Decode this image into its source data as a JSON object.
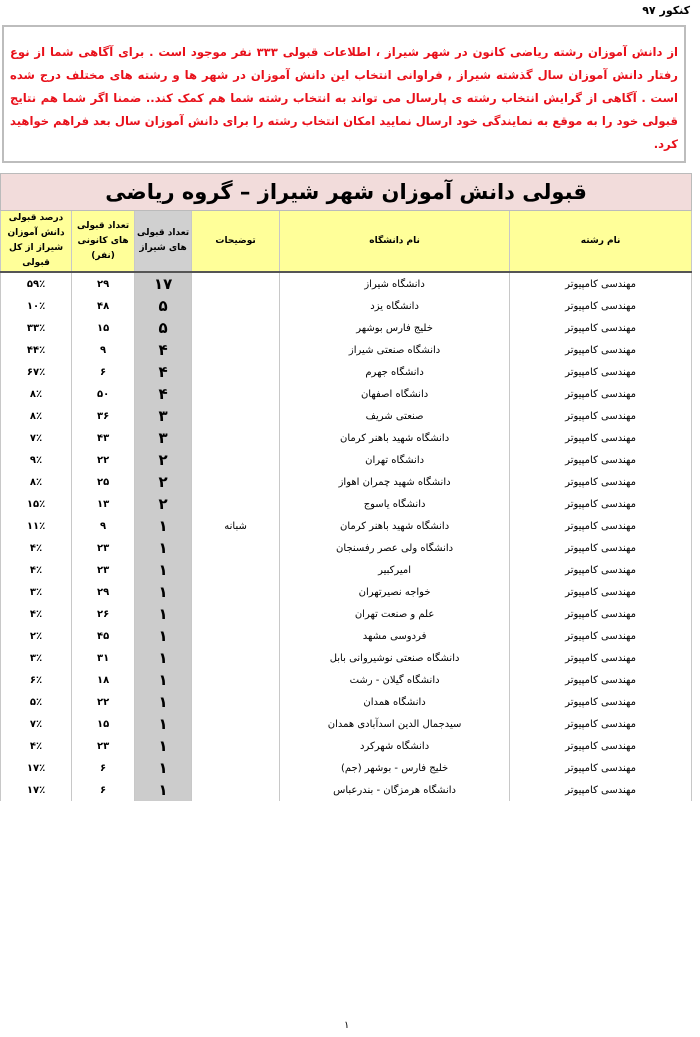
{
  "header": {
    "exam": "کنکور ۹۷"
  },
  "intro": {
    "text": "از دانش آموزان رشته ریاضی کانون در شهر شیراز ، اطلاعات قبولی ۳۳۳ نفر موجود است . برای آگاهی شما از نوع رفتار دانش آموزان سال گذشته شیراز , فراوانی انتخاب این دانش آموزان در شهر ها و رشته های مختلف درج شده است . آگاهی از گرایش انتخاب رشته ی پارسال می تواند به انتخاب رشته شما هم کمک کند.. ضمنا اگر شما هم نتایج قبولی خود را به موقع به نمایندگی خود ارسال نمایید امکان انتخاب رشته را برای دانش آموزان سال بعد فراهم خواهید کرد.",
    "color": "#e8101a"
  },
  "table": {
    "title": "قبولی دانش آموزان شهر شیراز – گروه ریاضی",
    "columns": [
      "نام رشته",
      "نام دانشگاه",
      "توضیحات",
      "تعداد قبولی های شیراز",
      "تعداد قبولی های کانونی (نفر)",
      "درصد قبولی دانش آموزان شیراز از کل قبولی"
    ],
    "rows": [
      [
        "مهندسی کامپیوتر",
        "دانشگاه شیراز",
        "",
        "۱۷",
        "۲۹",
        "۵۹٪"
      ],
      [
        "مهندسی کامپیوتر",
        "دانشگاه یزد",
        "",
        "۵",
        "۴۸",
        "۱۰٪"
      ],
      [
        "مهندسی کامپیوتر",
        "خلیج فارس بوشهر",
        "",
        "۵",
        "۱۵",
        "۳۳٪"
      ],
      [
        "مهندسی کامپیوتر",
        "دانشگاه صنعتی شیراز",
        "",
        "۴",
        "۹",
        "۴۴٪"
      ],
      [
        "مهندسی کامپیوتر",
        "دانشگاه جهرم",
        "",
        "۴",
        "۶",
        "۶۷٪"
      ],
      [
        "مهندسی کامپیوتر",
        "دانشگاه اصفهان",
        "",
        "۴",
        "۵۰",
        "۸٪"
      ],
      [
        "مهندسی کامپیوتر",
        "صنعتی شریف",
        "",
        "۳",
        "۳۶",
        "۸٪"
      ],
      [
        "مهندسی کامپیوتر",
        "دانشگاه شهید باهنر کرمان",
        "",
        "۳",
        "۴۳",
        "۷٪"
      ],
      [
        "مهندسی کامپیوتر",
        "دانشگاه تهران",
        "",
        "۲",
        "۲۲",
        "۹٪"
      ],
      [
        "مهندسی کامپیوتر",
        "دانشگاه شهید چمران اهواز",
        "",
        "۲",
        "۲۵",
        "۸٪"
      ],
      [
        "مهندسی کامپیوتر",
        "دانشگاه یاسوج",
        "",
        "۲",
        "۱۳",
        "۱۵٪"
      ],
      [
        "مهندسی کامپیوتر",
        "دانشگاه شهید باهنر کرمان",
        "شبانه",
        "۱",
        "۹",
        "۱۱٪"
      ],
      [
        "مهندسی کامپیوتر",
        "دانشگاه ولی عصر رفسنجان",
        "",
        "۱",
        "۲۳",
        "۴٪"
      ],
      [
        "مهندسی کامپیوتر",
        "امیرکبیر",
        "",
        "۱",
        "۲۳",
        "۴٪"
      ],
      [
        "مهندسی کامپیوتر",
        "خواجه نصیرتهران",
        "",
        "۱",
        "۲۹",
        "۳٪"
      ],
      [
        "مهندسی کامپیوتر",
        "علم و صنعت تهران",
        "",
        "۱",
        "۲۶",
        "۴٪"
      ],
      [
        "مهندسی کامپیوتر",
        "فردوسی مشهد",
        "",
        "۱",
        "۴۵",
        "۲٪"
      ],
      [
        "مهندسی کامپیوتر",
        "دانشگاه صنعتی نوشیروانی بابل",
        "",
        "۱",
        "۳۱",
        "۳٪"
      ],
      [
        "مهندسی کامپیوتر",
        "دانشگاه گیلان - رشت",
        "",
        "۱",
        "۱۸",
        "۶٪"
      ],
      [
        "مهندسی کامپیوتر",
        "دانشگاه همدان",
        "",
        "۱",
        "۲۲",
        "۵٪"
      ],
      [
        "مهندسی کامپیوتر",
        "سیدجمال الدین اسدآبادی همدان",
        "",
        "۱",
        "۱۵",
        "۷٪"
      ],
      [
        "مهندسی کامپیوتر",
        "دانشگاه شهرکرد",
        "",
        "۱",
        "۲۳",
        "۴٪"
      ],
      [
        "مهندسی کامپیوتر",
        "خلیج فارس - بوشهر (جم)",
        "",
        "۱",
        "۶",
        "۱۷٪"
      ],
      [
        "مهندسی کامپیوتر",
        "دانشگاه هرمزگان - بندرعباس",
        "",
        "۱",
        "۶",
        "۱۷٪"
      ]
    ]
  },
  "footer": {
    "page_number": "۱"
  }
}
